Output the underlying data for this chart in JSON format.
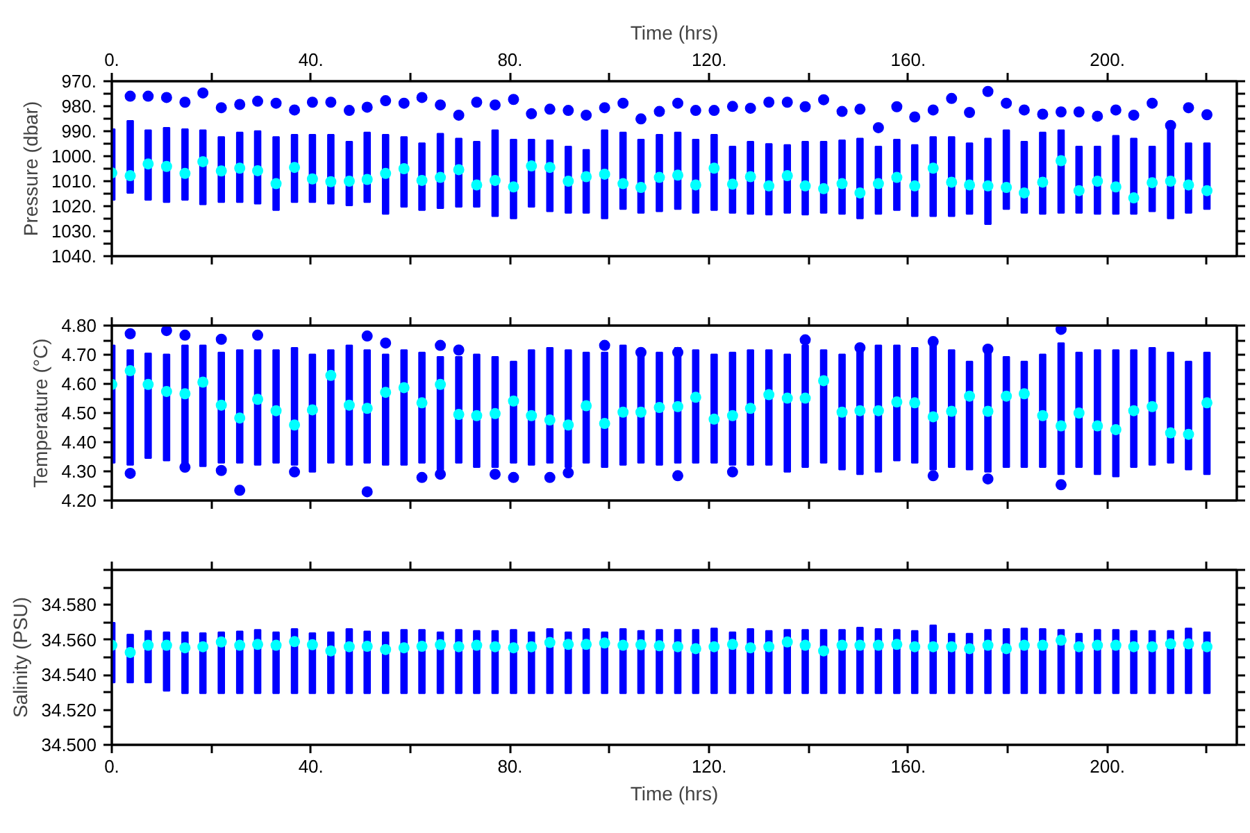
{
  "chart_data": [
    {
      "type": "scatter",
      "ylabel": "Pressure (dbar)",
      "x2label": "Time (hrs)",
      "marker": "circle",
      "tick_labels": "y",
      "xlim": [
        0,
        226
      ],
      "ylim": [
        1040,
        970
      ],
      "xticks": [
        {
          "value": 0,
          "label": null
        },
        {
          "value": 20,
          "label": null
        },
        {
          "value": 40,
          "label": null
        },
        {
          "value": 60,
          "label": null
        },
        {
          "value": 80,
          "label": null
        },
        {
          "value": 100,
          "label": null
        },
        {
          "value": 120,
          "label": null
        },
        {
          "value": 140,
          "label": null
        },
        {
          "value": 160,
          "label": null
        },
        {
          "value": 180,
          "label": null
        },
        {
          "value": 200,
          "label": null
        },
        {
          "value": 220,
          "label": null
        }
      ],
      "x2lim": [
        0,
        226
      ],
      "x2ticks": [
        {
          "value": 0,
          "label": "0."
        },
        {
          "value": 20,
          "label": null
        },
        {
          "value": 40,
          "label": "40."
        },
        {
          "value": 60,
          "label": null
        },
        {
          "value": 80,
          "label": "80."
        },
        {
          "value": 100,
          "label": null
        },
        {
          "value": 120,
          "label": "120."
        },
        {
          "value": 140,
          "label": null
        },
        {
          "value": 160,
          "label": "160."
        },
        {
          "value": 180,
          "label": null
        },
        {
          "value": 200,
          "label": "200."
        },
        {
          "value": 220,
          "label": null
        }
      ],
      "yticks": [
        {
          "value": 970,
          "label": "970."
        },
        {
          "value": 975,
          "label": null
        },
        {
          "value": 980,
          "label": "980."
        },
        {
          "value": 985,
          "label": null
        },
        {
          "value": 990,
          "label": "990."
        },
        {
          "value": 995,
          "label": null
        },
        {
          "value": 1000,
          "label": "1000."
        },
        {
          "value": 1005,
          "label": null
        },
        {
          "value": 1010,
          "label": "1010."
        },
        {
          "value": 1015,
          "label": null
        },
        {
          "value": 1020,
          "label": "1020."
        },
        {
          "value": 1025,
          "label": null
        },
        {
          "value": 1030,
          "label": "1030."
        },
        {
          "value": 1035,
          "label": null
        },
        {
          "value": 1040,
          "label": "1040."
        }
      ],
      "x": [
        0,
        3.7,
        7.3,
        11,
        14.7,
        18.3,
        22,
        25.7,
        29.3,
        33,
        36.7,
        40.3,
        44,
        47.7,
        51.3,
        55,
        58.7,
        62.3,
        66,
        69.7,
        73.3,
        77,
        80.7,
        84.3,
        88,
        91.7,
        95.3,
        99,
        102.7,
        106.3,
        110,
        113.7,
        117.3,
        121,
        124.7,
        128.3,
        132,
        135.7,
        139.3,
        143,
        146.7,
        150.3,
        154,
        157.7,
        161.3,
        165,
        168.7,
        172.3,
        176,
        179.7,
        183.3,
        187,
        190.7,
        194.3,
        198,
        201.7,
        205.3,
        209,
        212.7,
        216.3,
        220
      ],
      "series": [
        {
          "type": "bar",
          "color": "#0000ff",
          "base": [
            989.2,
            985.8,
            989.6,
            988.6,
            989.2,
            989.6,
            992.3,
            990.5,
            989.9,
            992.3,
            991.4,
            991.4,
            991.4,
            994.2,
            990.5,
            991.4,
            992.3,
            994.8,
            991.0,
            992.9,
            994.2,
            989.6,
            993.3,
            993.3,
            993.6,
            996.1,
            997.4,
            989.6,
            990.5,
            993.3,
            991.4,
            990.5,
            993.3,
            991.4,
            996.1,
            994.2,
            995.1,
            995.5,
            994.2,
            994.2,
            993.6,
            992.9,
            996.1,
            993.3,
            995.5,
            992.3,
            992.3,
            994.8,
            992.9,
            989.6,
            994.2,
            990.5,
            989.6,
            996.1,
            996.1,
            991.8,
            992.9,
            996.1,
            986.8,
            994.8,
            994.8
          ],
          "values": [
            28.3,
            28.9,
            27.9,
            29.8,
            28.3,
            29.7,
            26.1,
            27.9,
            29.1,
            29.3,
            27.0,
            27.0,
            27.6,
            25.5,
            27.9,
            31.7,
            28.0,
            26.8,
            29.8,
            27.4,
            26.1,
            34.4,
            31.6,
            27.0,
            28.5,
            26.6,
            25.3,
            35.3,
            30.7,
            29.4,
            30.7,
            30.7,
            29.4,
            30.2,
            26.6,
            28.9,
            28.3,
            27.2,
            29.2,
            28.5,
            29.5,
            32.0,
            27.0,
            28.3,
            28.5,
            31.7,
            31.7,
            28.3,
            34.3,
            31.6,
            28.5,
            32.6,
            33.1,
            26.6,
            27.0,
            31.3,
            30.2,
            26.0,
            38.1,
            27.9,
            26.4
          ]
        },
        {
          "color": "#0000ff",
          "x": [
            3.7,
            7.3,
            11,
            14.7,
            18.3,
            22,
            25.7,
            29.3,
            33,
            36.7,
            40.3,
            44,
            47.7,
            51.3,
            55,
            58.7,
            62.3,
            66,
            69.7,
            73.3,
            77,
            80.7,
            84.3,
            88,
            91.7,
            95.3,
            99,
            102.7,
            106.3,
            110,
            113.7,
            117.3,
            121,
            124.7,
            128.3,
            132,
            135.7,
            139.3,
            143,
            146.7,
            150.3,
            154,
            157.7,
            161.3,
            165,
            168.7,
            172.3,
            176,
            179.7,
            183.3,
            187,
            190.7,
            194.3,
            198,
            201.7,
            205.3,
            209,
            212.7,
            216.3,
            220
          ],
          "values": [
            976.0,
            976.0,
            976.5,
            978.4,
            974.7,
            980.6,
            979.3,
            978.0,
            978.8,
            981.5,
            978.4,
            978.4,
            981.7,
            980.4,
            977.8,
            978.8,
            976.5,
            979.5,
            983.6,
            978.4,
            979.5,
            977.3,
            983.0,
            981.2,
            981.7,
            983.6,
            980.6,
            978.8,
            985.1,
            982.1,
            978.8,
            981.7,
            981.7,
            980.1,
            980.8,
            978.4,
            978.4,
            980.2,
            977.4,
            982.1,
            981.2,
            988.6,
            980.2,
            984.3,
            981.5,
            976.9,
            982.5,
            974.1,
            978.8,
            981.5,
            983.2,
            982.3,
            982.3,
            984.0,
            981.5,
            983.6,
            978.8,
            987.7,
            980.6,
            983.4
          ]
        },
        {
          "color": "#00ffff",
          "values": [
            1006.7,
            1007.8,
            1003.1,
            1004.1,
            1006.9,
            1002.2,
            1005.9,
            1004.8,
            1005.8,
            1011.0,
            1004.5,
            1009.1,
            1010.2,
            1010.0,
            1009.3,
            1006.9,
            1005.0,
            1009.7,
            1008.5,
            1005.4,
            1011.5,
            1009.7,
            1012.3,
            1003.9,
            1004.5,
            1010.0,
            1008.2,
            1007.2,
            1011.0,
            1012.5,
            1008.5,
            1007.6,
            1011.5,
            1004.8,
            1011.2,
            1008.2,
            1011.9,
            1007.8,
            1011.9,
            1013.0,
            1011.0,
            1014.7,
            1011.0,
            1008.5,
            1011.9,
            1004.8,
            1010.4,
            1011.5,
            1011.9,
            1012.5,
            1014.7,
            1010.4,
            1001.8,
            1013.8,
            1010.0,
            1012.3,
            1016.7,
            1010.6,
            1010.0,
            1011.5,
            1013.8
          ]
        }
      ]
    },
    {
      "type": "scatter",
      "ylabel": "Temperature (°C)",
      "marker": "circle",
      "tick_labels": "y",
      "xlim": [
        0,
        226
      ],
      "ylim": [
        4.2,
        4.8
      ],
      "xticks": [
        {
          "value": 0,
          "label": null
        },
        {
          "value": 20,
          "label": null
        },
        {
          "value": 40,
          "label": null
        },
        {
          "value": 60,
          "label": null
        },
        {
          "value": 80,
          "label": null
        },
        {
          "value": 100,
          "label": null
        },
        {
          "value": 120,
          "label": null
        },
        {
          "value": 140,
          "label": null
        },
        {
          "value": 160,
          "label": null
        },
        {
          "value": 180,
          "label": null
        },
        {
          "value": 200,
          "label": null
        },
        {
          "value": 220,
          "label": null
        }
      ],
      "yticks": [
        {
          "value": 4.2,
          "label": "4.20"
        },
        {
          "value": 4.25,
          "label": null
        },
        {
          "value": 4.3,
          "label": "4.30"
        },
        {
          "value": 4.35,
          "label": null
        },
        {
          "value": 4.4,
          "label": "4.40"
        },
        {
          "value": 4.45,
          "label": null
        },
        {
          "value": 4.5,
          "label": "4.50"
        },
        {
          "value": 4.55,
          "label": null
        },
        {
          "value": 4.6,
          "label": "4.60"
        },
        {
          "value": 4.65,
          "label": null
        },
        {
          "value": 4.7,
          "label": "4.70"
        },
        {
          "value": 4.75,
          "label": null
        },
        {
          "value": 4.8,
          "label": "4.80"
        }
      ],
      "x": [
        0,
        3.7,
        7.3,
        11,
        14.7,
        18.3,
        22,
        25.7,
        29.3,
        33,
        36.7,
        40.3,
        44,
        47.7,
        51.3,
        55,
        58.7,
        62.3,
        66,
        69.7,
        73.3,
        77,
        80.7,
        84.3,
        88,
        91.7,
        95.3,
        99,
        102.7,
        106.3,
        110,
        113.7,
        117.3,
        121,
        124.7,
        128.3,
        132,
        135.7,
        139.3,
        143,
        146.7,
        150.3,
        154,
        157.7,
        161.3,
        165,
        168.7,
        172.3,
        176,
        179.7,
        183.3,
        187,
        190.7,
        194.3,
        198,
        201.7,
        205.3,
        209,
        212.7,
        216.3,
        220
      ],
      "series": [
        {
          "type": "bar",
          "color": "#0000ff",
          "base": [
            4.329,
            4.322,
            4.345,
            4.337,
            4.322,
            4.317,
            4.329,
            4.329,
            4.322,
            4.329,
            4.322,
            4.298,
            4.329,
            4.322,
            4.329,
            4.322,
            4.322,
            4.329,
            4.306,
            4.329,
            4.314,
            4.314,
            4.329,
            4.322,
            4.329,
            4.314,
            4.329,
            4.314,
            4.322,
            4.329,
            4.322,
            4.329,
            4.329,
            4.329,
            4.322,
            4.322,
            4.322,
            4.298,
            4.314,
            4.329,
            4.306,
            4.29,
            4.298,
            4.337,
            4.329,
            4.306,
            4.314,
            4.306,
            4.298,
            4.314,
            4.314,
            4.314,
            4.29,
            4.314,
            4.29,
            4.282,
            4.314,
            4.322,
            4.329,
            4.306,
            4.29
          ],
          "values": [
            0.403,
            0.394,
            0.36,
            0.364,
            0.41,
            0.415,
            0.379,
            0.387,
            0.394,
            0.387,
            0.402,
            0.403,
            0.387,
            0.41,
            0.387,
            0.379,
            0.394,
            0.379,
            0.387,
            0.364,
            0.387,
            0.379,
            0.348,
            0.394,
            0.395,
            0.402,
            0.379,
            0.394,
            0.41,
            0.372,
            0.386,
            0.395,
            0.387,
            0.372,
            0.386,
            0.394,
            0.394,
            0.403,
            0.418,
            0.387,
            0.395,
            0.434,
            0.434,
            0.395,
            0.395,
            0.426,
            0.402,
            0.371,
            0.41,
            0.379,
            0.363,
            0.387,
            0.45,
            0.394,
            0.426,
            0.434,
            0.402,
            0.402,
            0.379,
            0.371,
            0.418
          ]
        },
        {
          "color": "#0000ff",
          "x": [
            3.7,
            3.7,
            11,
            14.7,
            14.7,
            22,
            22,
            25.7,
            29.3,
            36.7,
            51.3,
            51.3,
            55,
            62.3,
            66,
            66,
            69.7,
            77,
            80.7,
            88,
            91.7,
            99,
            106.3,
            113.7,
            113.7,
            124.7,
            139.3,
            150.3,
            165,
            165,
            176,
            176,
            190.7,
            190.7
          ],
          "values": [
            4.772,
            4.293,
            4.783,
            4.767,
            4.314,
            4.753,
            4.303,
            4.235,
            4.767,
            4.298,
            4.764,
            4.23,
            4.74,
            4.279,
            4.732,
            4.29,
            4.716,
            4.29,
            4.279,
            4.279,
            4.295,
            4.732,
            4.708,
            4.708,
            4.285,
            4.298,
            4.751,
            4.724,
            4.745,
            4.285,
            4.719,
            4.274,
            4.787,
            4.254
          ]
        },
        {
          "color": "#00ffff",
          "values": [
            4.598,
            4.645,
            4.598,
            4.574,
            4.566,
            4.606,
            4.527,
            4.483,
            4.547,
            4.508,
            4.459,
            4.511,
            4.629,
            4.527,
            4.516,
            4.571,
            4.587,
            4.535,
            4.598,
            4.495,
            4.491,
            4.498,
            4.541,
            4.491,
            4.476,
            4.459,
            4.525,
            4.464,
            4.503,
            4.503,
            4.519,
            4.522,
            4.554,
            4.479,
            4.491,
            4.516,
            4.563,
            4.551,
            4.551,
            4.611,
            4.503,
            4.508,
            4.508,
            4.538,
            4.535,
            4.487,
            4.506,
            4.558,
            4.506,
            4.558,
            4.566,
            4.491,
            4.456,
            4.5,
            4.456,
            4.443,
            4.508,
            4.522,
            4.432,
            4.427,
            4.535
          ]
        }
      ]
    },
    {
      "type": "scatter",
      "ylabel": "Salinity (PSU)",
      "xlabel": "Time (hrs)",
      "marker": "circle",
      "xlim": [
        0,
        226
      ],
      "ylim": [
        34.5,
        34.6
      ],
      "xticks": [
        {
          "value": 0,
          "label": "0."
        },
        {
          "value": 20,
          "label": null
        },
        {
          "value": 40,
          "label": "40."
        },
        {
          "value": 60,
          "label": null
        },
        {
          "value": 80,
          "label": "80."
        },
        {
          "value": 100,
          "label": null
        },
        {
          "value": 120,
          "label": "120."
        },
        {
          "value": 140,
          "label": null
        },
        {
          "value": 160,
          "label": "160."
        },
        {
          "value": 180,
          "label": null
        },
        {
          "value": 200,
          "label": "200."
        },
        {
          "value": 220,
          "label": null
        }
      ],
      "yticks": [
        {
          "value": 34.5,
          "label": "34.500"
        },
        {
          "value": 34.51,
          "label": null
        },
        {
          "value": 34.52,
          "label": "34.520"
        },
        {
          "value": 34.53,
          "label": null
        },
        {
          "value": 34.54,
          "label": "34.540"
        },
        {
          "value": 34.55,
          "label": null
        },
        {
          "value": 34.56,
          "label": "34.560"
        },
        {
          "value": 34.57,
          "label": null
        },
        {
          "value": 34.58,
          "label": "34.580"
        },
        {
          "value": 34.59,
          "label": null
        },
        {
          "value": 34.6,
          "label": null
        }
      ],
      "x": [
        0,
        3.7,
        7.3,
        11,
        14.7,
        18.3,
        22,
        25.7,
        29.3,
        33,
        36.7,
        40.3,
        44,
        47.7,
        51.3,
        55,
        58.7,
        62.3,
        66,
        69.7,
        73.3,
        77,
        80.7,
        84.3,
        88,
        91.7,
        95.3,
        99,
        102.7,
        106.3,
        110,
        113.7,
        117.3,
        121,
        124.7,
        128.3,
        132,
        135.7,
        139.3,
        143,
        146.7,
        150.3,
        154,
        157.7,
        161.3,
        165,
        168.7,
        172.3,
        176,
        179.7,
        183.3,
        187,
        190.7,
        194.3,
        198,
        201.7,
        205.3,
        209,
        212.7,
        216.3,
        220
      ],
      "series": [
        {
          "type": "bar",
          "color": "#0000ff",
          "base": [
            34.5356,
            34.5356,
            34.5356,
            34.5309,
            34.5295,
            34.5295,
            34.5295,
            34.5295,
            34.5295,
            34.5295,
            34.5295,
            34.5295,
            34.5295,
            34.5295,
            34.5295,
            34.5295,
            34.5295,
            34.5295,
            34.5295,
            34.5295,
            34.5295,
            34.5295,
            34.5295,
            34.5295,
            34.5295,
            34.5295,
            34.5295,
            34.5295,
            34.5295,
            34.5295,
            34.5295,
            34.5295,
            34.5295,
            34.5295,
            34.5295,
            34.5295,
            34.5295,
            34.5295,
            34.5295,
            34.5295,
            34.5295,
            34.5295,
            34.5295,
            34.5295,
            34.5295,
            34.5295,
            34.5295,
            34.5295,
            34.5295,
            34.5295,
            34.5295,
            34.5295,
            34.5295,
            34.5295,
            34.5295,
            34.5295,
            34.5295,
            34.5295,
            34.5295,
            34.5295,
            34.5295
          ],
          "values": [
            0.0342,
            0.0275,
            0.0296,
            0.0335,
            0.0349,
            0.0344,
            0.0349,
            0.0354,
            0.0363,
            0.0349,
            0.0368,
            0.0344,
            0.0349,
            0.0368,
            0.0354,
            0.0349,
            0.0363,
            0.0363,
            0.0349,
            0.0363,
            0.0357,
            0.0357,
            0.0363,
            0.0349,
            0.0368,
            0.0349,
            0.0368,
            0.0349,
            0.0368,
            0.0357,
            0.0363,
            0.0363,
            0.0363,
            0.0371,
            0.0349,
            0.0368,
            0.0357,
            0.0363,
            0.0363,
            0.0363,
            0.0363,
            0.0376,
            0.0368,
            0.0363,
            0.0357,
            0.0389,
            0.0341,
            0.0341,
            0.0363,
            0.0368,
            0.0371,
            0.0368,
            0.0363,
            0.0341,
            0.0363,
            0.0363,
            0.0357,
            0.0357,
            0.0357,
            0.0371,
            0.0349
          ]
        },
        {
          "color": "#00ffff",
          "values": [
            34.5569,
            34.5528,
            34.5569,
            34.5569,
            34.5555,
            34.5561,
            34.5588,
            34.5569,
            34.5574,
            34.5569,
            34.559,
            34.5572,
            34.5537,
            34.5561,
            34.5563,
            34.5545,
            34.5555,
            34.5563,
            34.5572,
            34.5561,
            34.5569,
            34.5561,
            34.5555,
            34.5561,
            34.5585,
            34.5574,
            34.5574,
            34.5582,
            34.5569,
            34.5572,
            34.5566,
            34.5561,
            34.555,
            34.5561,
            34.5574,
            34.5555,
            34.5561,
            34.5588,
            34.5569,
            34.5537,
            34.5569,
            34.5569,
            34.5569,
            34.5574,
            34.5561,
            34.5561,
            34.5561,
            34.555,
            34.5569,
            34.555,
            34.5569,
            34.5569,
            34.5598,
            34.5561,
            34.5569,
            34.5569,
            34.5561,
            34.5561,
            34.5577,
            34.5577,
            34.5561
          ]
        }
      ]
    }
  ]
}
